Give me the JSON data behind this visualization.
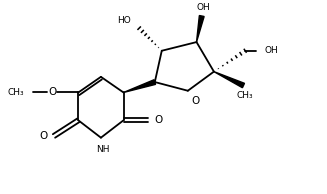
{
  "bg_color": "#ffffff",
  "line_color": "#000000",
  "line_width": 1.3,
  "font_size": 6.5,
  "figsize": [
    3.27,
    1.94
  ],
  "dpi": 100,
  "xlim": [
    0,
    9
  ],
  "ylim": [
    0,
    5.5
  ]
}
